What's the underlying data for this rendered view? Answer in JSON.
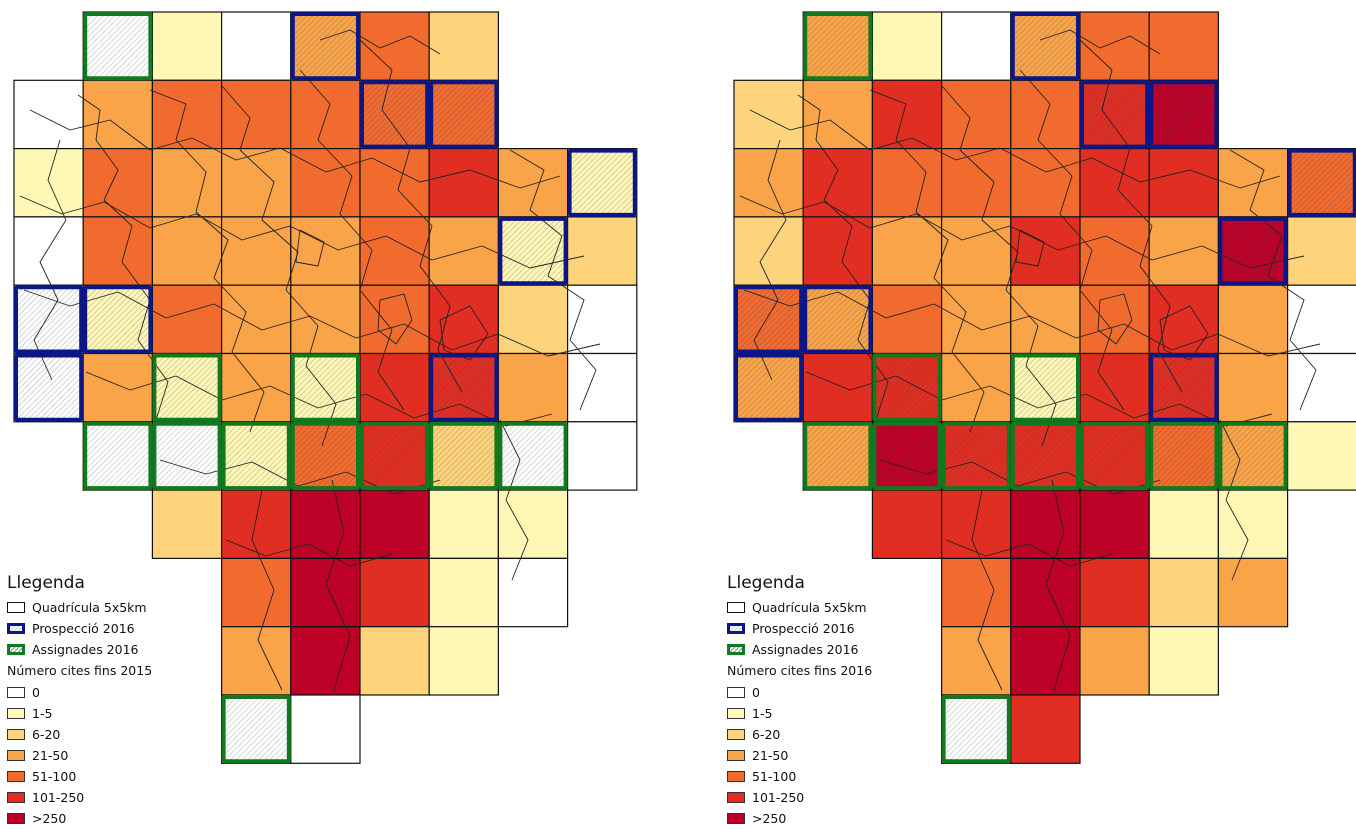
{
  "maps": [
    {
      "legend": {
        "title": "Llegenda",
        "grid_label": "Quadrícula 5x5km",
        "prospect_label": "Prospecció 2016",
        "assigned_label": "Assignades 2016",
        "count_title": "Número cites fins 2015",
        "classes": [
          "0",
          "1-5",
          "6-20",
          "21-50",
          "51-100",
          "101-250",
          ">250"
        ]
      },
      "cells": [
        [
          null,
          0,
          1,
          0,
          3,
          4,
          2,
          null,
          null
        ],
        [
          0,
          3,
          4,
          4,
          4,
          4,
          4,
          null,
          null
        ],
        [
          1,
          4,
          3,
          3,
          4,
          4,
          5,
          3,
          1
        ],
        [
          0,
          4,
          3,
          3,
          3,
          4,
          3,
          1,
          2
        ],
        [
          0,
          1,
          4,
          3,
          3,
          4,
          5,
          2,
          0
        ],
        [
          0,
          3,
          1,
          3,
          1,
          5,
          5,
          3,
          0
        ],
        [
          null,
          0,
          0,
          1,
          4,
          5,
          2,
          0,
          0
        ],
        [
          null,
          null,
          2,
          5,
          6,
          6,
          1,
          1,
          null
        ],
        [
          null,
          null,
          null,
          4,
          6,
          5,
          1,
          0,
          null
        ],
        [
          null,
          null,
          null,
          3,
          6,
          2,
          1,
          null,
          null
        ],
        [
          null,
          null,
          null,
          0,
          0,
          null,
          null,
          null,
          null
        ]
      ]
    },
    {
      "legend": {
        "title": "Llegenda",
        "grid_label": "Quadrícula 5x5km",
        "prospect_label": "Prospecció 2016",
        "assigned_label": "Assignades 2016",
        "count_title": "Número cites fins 2016",
        "classes": [
          "0",
          "1-5",
          "6-20",
          "21-50",
          "51-100",
          "101-250",
          ">250"
        ]
      },
      "cells": [
        [
          null,
          3,
          1,
          0,
          3,
          4,
          4,
          null,
          null
        ],
        [
          2,
          3,
          5,
          4,
          4,
          5,
          6,
          null,
          null
        ],
        [
          3,
          5,
          4,
          4,
          4,
          5,
          5,
          3,
          4
        ],
        [
          2,
          5,
          3,
          3,
          5,
          4,
          3,
          6,
          2
        ],
        [
          4,
          3,
          4,
          3,
          3,
          4,
          5,
          3,
          0
        ],
        [
          3,
          5,
          5,
          3,
          1,
          5,
          5,
          3,
          0
        ],
        [
          null,
          3,
          6,
          5,
          5,
          5,
          4,
          3,
          1
        ],
        [
          null,
          null,
          5,
          5,
          6,
          6,
          1,
          1,
          null
        ],
        [
          null,
          null,
          null,
          4,
          6,
          5,
          2,
          3,
          null
        ],
        [
          null,
          null,
          null,
          3,
          6,
          3,
          1,
          null,
          null
        ],
        [
          null,
          null,
          null,
          0,
          5,
          null,
          null,
          null,
          null
        ]
      ]
    }
  ],
  "prospect_cells": [
    [
      0,
      4
    ],
    [
      1,
      5
    ],
    [
      1,
      6
    ],
    [
      2,
      8
    ],
    [
      3,
      7
    ],
    [
      4,
      0
    ],
    [
      4,
      1
    ],
    [
      5,
      0
    ],
    [
      5,
      6
    ]
  ],
  "assigned_cells": [
    [
      0,
      1
    ],
    [
      5,
      2
    ],
    [
      5,
      4
    ],
    [
      6,
      1
    ],
    [
      6,
      2
    ],
    [
      6,
      3
    ],
    [
      6,
      4
    ],
    [
      6,
      5
    ],
    [
      6,
      6
    ],
    [
      6,
      7
    ],
    [
      10,
      3
    ]
  ],
  "colors": {
    "classes": [
      "#ffffff",
      "#fff7b6",
      "#fdd47c",
      "#f9a449",
      "#f16b2f",
      "#e12e23",
      "#bd0026"
    ],
    "prospect_border": "#0b1789",
    "assigned_border": "#127a1e",
    "grid_border": "#111111",
    "boundary_line": "#222222"
  }
}
